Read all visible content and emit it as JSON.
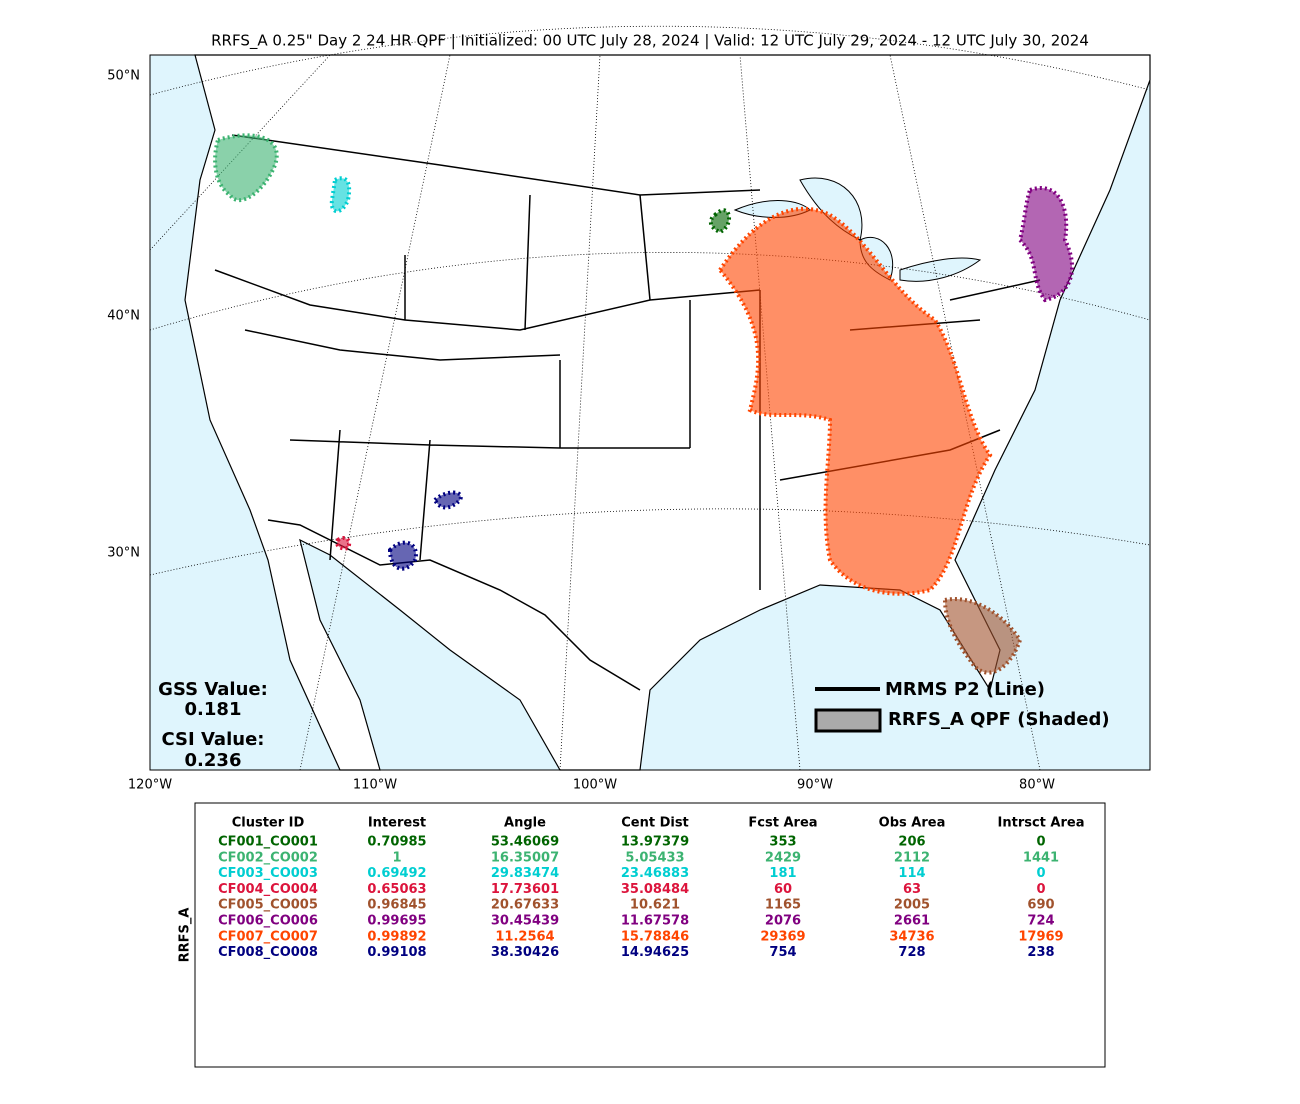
{
  "title": "RRFS_A 0.25\" Day 2 24 HR QPF | Initialized: 00 UTC July 28, 2024 | Valid: 12 UTC July 29, 2024 - 12 UTC July 30, 2024",
  "map": {
    "lat_labels": [
      "50°N",
      "40°N",
      "30°N"
    ],
    "lon_labels": [
      "120°W",
      "110°W",
      "100°W",
      "90°W",
      "80°W"
    ]
  },
  "scores": {
    "gss_label": "GSS Value:",
    "gss_value": "0.181",
    "csi_label": "CSI Value:",
    "csi_value": "0.236"
  },
  "legend": {
    "line": "MRMS P2 (Line)",
    "shaded": "RRFS_A QPF (Shaded)"
  },
  "table": {
    "side_label": "RRFS_A",
    "headers": [
      "Cluster ID",
      "Interest",
      "Angle",
      "Cent Dist",
      "Fcst Area",
      "Obs Area",
      "Intrsct Area"
    ],
    "row_colors": [
      "#006400",
      "#3cb371",
      "#00ced1",
      "#dc143c",
      "#a0522d",
      "#800080",
      "#ff4500",
      "#000080"
    ],
    "rows": [
      [
        "CF001_CO001",
        "0.70985",
        "53.46069",
        "13.97379",
        "353",
        "206",
        "0"
      ],
      [
        "CF002_CO002",
        "1",
        "16.35007",
        "5.05433",
        "2429",
        "2112",
        "1441"
      ],
      [
        "CF003_CO003",
        "0.69492",
        "29.83474",
        "23.46883",
        "181",
        "114",
        "0"
      ],
      [
        "CF004_CO004",
        "0.65063",
        "17.73601",
        "35.08484",
        "60",
        "63",
        "0"
      ],
      [
        "CF005_CO005",
        "0.96845",
        "20.67633",
        "10.621",
        "1165",
        "2005",
        "690"
      ],
      [
        "CF006_CO006",
        "0.99695",
        "30.45439",
        "11.67578",
        "2076",
        "2661",
        "724"
      ],
      [
        "CF007_CO007",
        "0.99892",
        "11.2564",
        "15.78846",
        "29369",
        "34736",
        "17969"
      ],
      [
        "CF008_CO008",
        "0.99108",
        "38.30426",
        "14.94625",
        "754",
        "728",
        "238"
      ]
    ]
  }
}
